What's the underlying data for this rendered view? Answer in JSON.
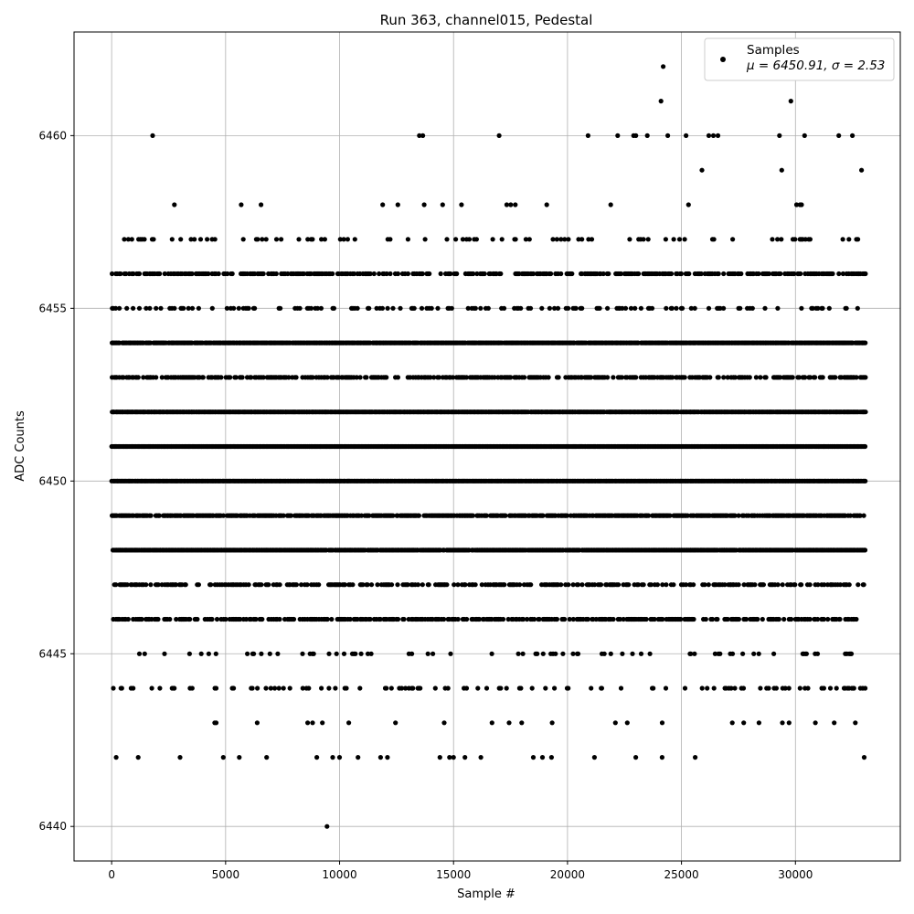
{
  "chart_data": {
    "type": "scatter",
    "title": "Run 363, channel015, Pedestal",
    "xlabel": "Sample #",
    "ylabel": "ADC Counts",
    "xlim": [
      -1650,
      34600
    ],
    "ylim": [
      6439,
      6463
    ],
    "x_ticks": [
      0,
      5000,
      10000,
      15000,
      20000,
      25000,
      30000
    ],
    "y_ticks": [
      6440,
      6445,
      6450,
      6455,
      6460
    ],
    "grid": true,
    "legend_position": "top-right",
    "series": [
      {
        "name": "Samples",
        "color": "#000000",
        "marker": "circle",
        "x_range": [
          0,
          33100
        ],
        "levels": [
          {
            "y": 6456,
            "density": 0.55
          },
          {
            "y": 6455,
            "density": 0.25
          },
          {
            "y": 6454,
            "density": 0.97
          },
          {
            "y": 6453,
            "density": 0.6
          },
          {
            "y": 6452,
            "density": 0.99
          },
          {
            "y": 6451,
            "density": 1.0
          },
          {
            "y": 6450,
            "density": 1.0
          },
          {
            "y": 6449,
            "density": 0.8
          },
          {
            "y": 6448,
            "density": 0.97
          },
          {
            "y": 6447,
            "density": 0.45
          },
          {
            "y": 6446,
            "density": 0.55
          },
          {
            "y": 6445,
            "density": 0.12
          },
          {
            "y": 6444,
            "density": 0.14
          },
          {
            "y": 6443,
            "density": 0.03
          },
          {
            "y": 6442,
            "density": 0.02
          },
          {
            "y": 6457,
            "density": 0.15
          },
          {
            "y": 6458,
            "density": 0.035
          }
        ],
        "outliers": [
          {
            "x": 1800,
            "y": 6460
          },
          {
            "x": 13500,
            "y": 6460
          },
          {
            "x": 13650,
            "y": 6460
          },
          {
            "x": 17000,
            "y": 6460
          },
          {
            "x": 20900,
            "y": 6460
          },
          {
            "x": 22200,
            "y": 6460
          },
          {
            "x": 22900,
            "y": 6460
          },
          {
            "x": 23000,
            "y": 6460
          },
          {
            "x": 23500,
            "y": 6460
          },
          {
            "x": 24400,
            "y": 6460
          },
          {
            "x": 25200,
            "y": 6460
          },
          {
            "x": 26200,
            "y": 6460
          },
          {
            "x": 26400,
            "y": 6460
          },
          {
            "x": 26600,
            "y": 6460
          },
          {
            "x": 29300,
            "y": 6460
          },
          {
            "x": 30400,
            "y": 6460
          },
          {
            "x": 31900,
            "y": 6460
          },
          {
            "x": 32500,
            "y": 6460
          },
          {
            "x": 25900,
            "y": 6459
          },
          {
            "x": 29400,
            "y": 6459
          },
          {
            "x": 32900,
            "y": 6459
          },
          {
            "x": 24100,
            "y": 6461
          },
          {
            "x": 29800,
            "y": 6461
          },
          {
            "x": 24200,
            "y": 6462
          },
          {
            "x": 9450,
            "y": 6440
          },
          {
            "x": 9000,
            "y": 6442
          },
          {
            "x": 9700,
            "y": 6442
          },
          {
            "x": 10000,
            "y": 6442
          },
          {
            "x": 25600,
            "y": 6442
          },
          {
            "x": 3000,
            "y": 6442
          },
          {
            "x": 4900,
            "y": 6442
          },
          {
            "x": 5600,
            "y": 6442
          },
          {
            "x": 6800,
            "y": 6442
          },
          {
            "x": 200,
            "y": 6442
          },
          {
            "x": 11800,
            "y": 6442
          },
          {
            "x": 12100,
            "y": 6442
          },
          {
            "x": 14400,
            "y": 6442
          },
          {
            "x": 15000,
            "y": 6442
          },
          {
            "x": 15500,
            "y": 6442
          },
          {
            "x": 16200,
            "y": 6442
          },
          {
            "x": 18500,
            "y": 6442
          },
          {
            "x": 18900,
            "y": 6442
          },
          {
            "x": 19300,
            "y": 6442
          },
          {
            "x": 28400,
            "y": 6443
          },
          {
            "x": 31700,
            "y": 6443
          },
          {
            "x": 22100,
            "y": 6443
          }
        ]
      }
    ],
    "legend": {
      "label": "Samples",
      "stats": "μ = 6450.91, σ = 2.53"
    }
  }
}
